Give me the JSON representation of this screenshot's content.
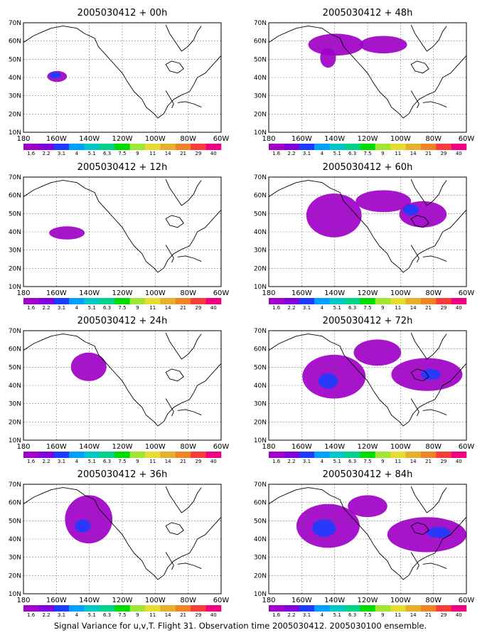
{
  "figure": {
    "caption": "Signal Variance for u,v,T. Flight 31. Observation time 2005030412. 2005030100 ensemble."
  },
  "axes": {
    "lat_labels": [
      "70N",
      "60N",
      "50N",
      "40N",
      "30N",
      "20N",
      "10N"
    ],
    "lon_labels": [
      "180",
      "160W",
      "140W",
      "120W",
      "100W",
      "80W",
      "60W"
    ]
  },
  "colorbar": {
    "labels": [
      "1.6",
      "2.2",
      "3.1",
      "4",
      "5.1",
      "6.3",
      "7.5",
      "9",
      "11",
      "14",
      "21",
      "29",
      "40"
    ],
    "colors": [
      "#a000c8",
      "#8200dc",
      "#1e3cff",
      "#00a0ff",
      "#00c8c8",
      "#00d28c",
      "#00dc00",
      "#a0e632",
      "#e6dc32",
      "#e6af2d",
      "#f08228",
      "#fa3c3c",
      "#f00082"
    ]
  },
  "panels": [
    {
      "title": "2005030412 + 00h"
    },
    {
      "title": "2005030412 + 12h"
    },
    {
      "title": "2005030412 + 24h"
    },
    {
      "title": "2005030412 + 36h"
    },
    {
      "title": "2005030412 + 48h"
    },
    {
      "title": "2005030412 + 60h"
    },
    {
      "title": "2005030412 + 72h"
    },
    {
      "title": "2005030412 + 84h"
    }
  ]
}
